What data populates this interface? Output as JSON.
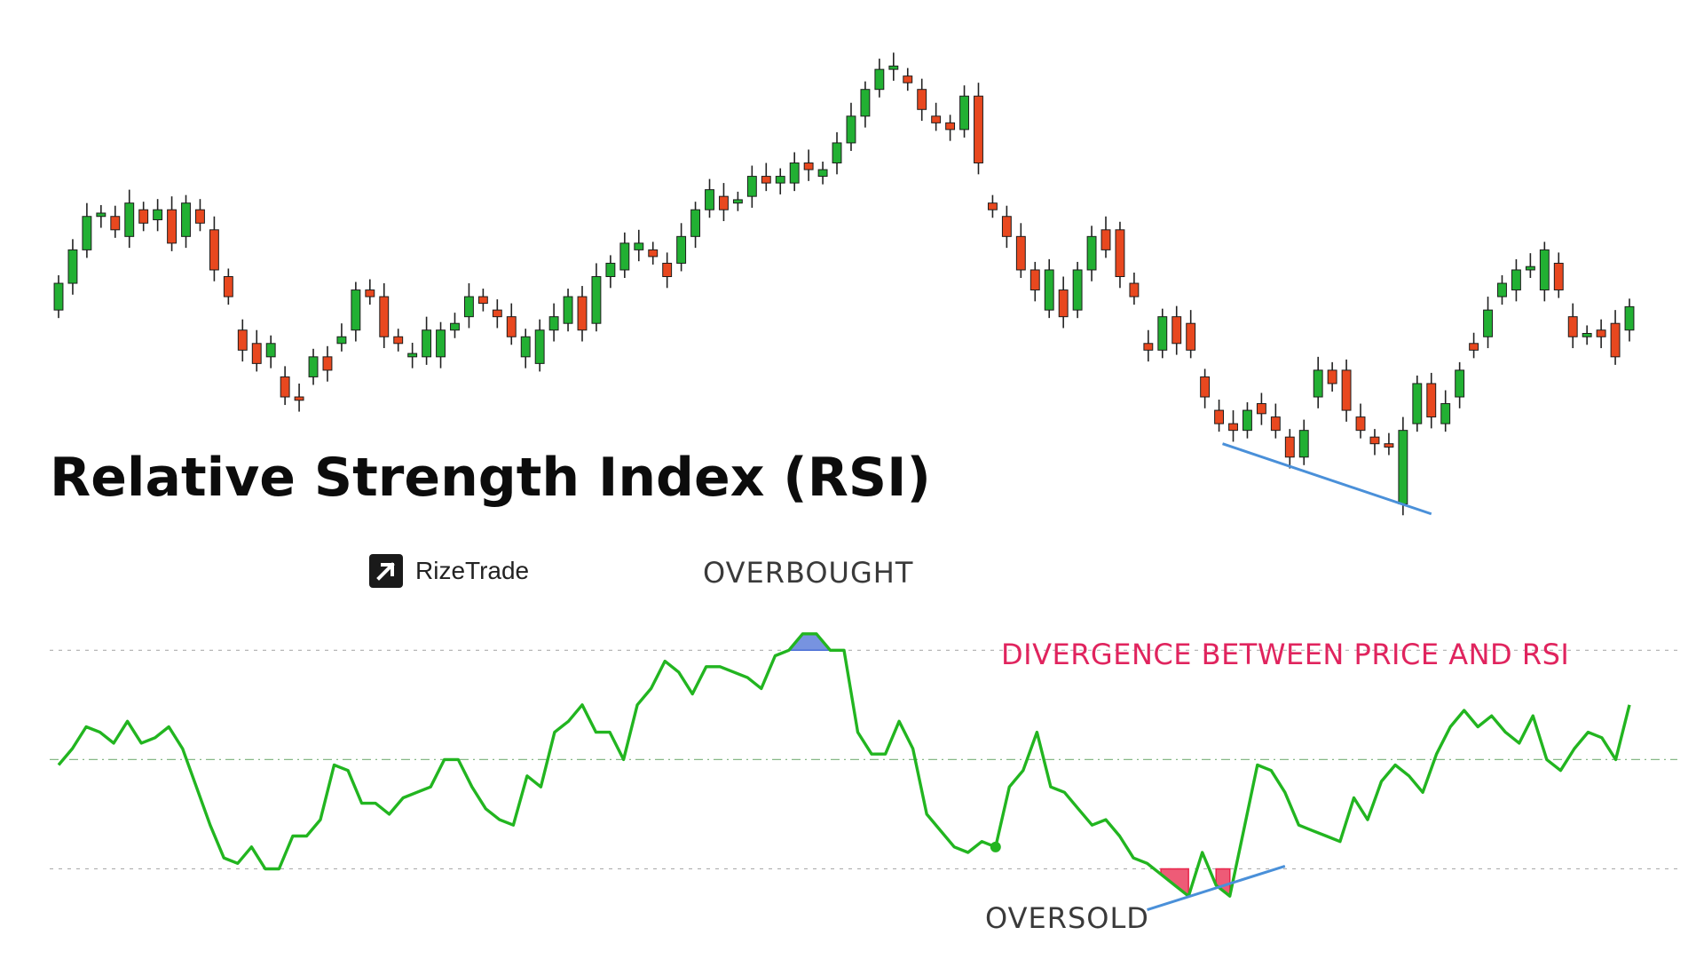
{
  "title": "Relative Strength Index (RSI)",
  "brand": {
    "name": "RizeTrade",
    "icon": "arrow-up-right-icon"
  },
  "colors": {
    "bull": "#22b033",
    "bear": "#e8481f",
    "rsi_line": "#22b520",
    "divergence_line": "#4a90d9",
    "overbought_fill": "#4a6fd6",
    "oversold_fill": "#e8244a",
    "divergence_text": "#e0245e"
  },
  "labels": {
    "overbought": "OVERBOUGHT",
    "oversold": "OVERSOLD",
    "divergence": "DIVERGENCE BETWEEN PRICE AND RSI"
  },
  "chart_data": [
    {
      "type": "candlestick",
      "title": "",
      "xlabel": "",
      "ylabel": "",
      "axes": "hidden",
      "grid": false,
      "ylim": [
        0,
        100
      ],
      "candles": [
        {
          "o": 18,
          "c": 22
        },
        {
          "o": 22,
          "c": 27
        },
        {
          "o": 27,
          "c": 32
        },
        {
          "o": 32,
          "c": 32.5
        },
        {
          "o": 32,
          "c": 30
        },
        {
          "o": 29,
          "c": 34
        },
        {
          "o": 33,
          "c": 31
        },
        {
          "o": 31.5,
          "c": 33
        },
        {
          "o": 33,
          "c": 28
        },
        {
          "o": 29,
          "c": 34
        },
        {
          "o": 33,
          "c": 31
        },
        {
          "o": 30,
          "c": 24
        },
        {
          "o": 23,
          "c": 20
        },
        {
          "o": 15,
          "c": 12
        },
        {
          "o": 13,
          "c": 10
        },
        {
          "o": 11,
          "c": 13
        },
        {
          "o": 8,
          "c": 5
        },
        {
          "o": 5,
          "c": 4.5
        },
        {
          "o": 8,
          "c": 11
        },
        {
          "o": 11,
          "c": 9
        },
        {
          "o": 13,
          "c": 14
        },
        {
          "o": 15,
          "c": 21
        },
        {
          "o": 21,
          "c": 20
        },
        {
          "o": 20,
          "c": 14
        },
        {
          "o": 14,
          "c": 13
        },
        {
          "o": 11,
          "c": 11.5
        },
        {
          "o": 11,
          "c": 15
        },
        {
          "o": 11,
          "c": 15
        },
        {
          "o": 15,
          "c": 16
        },
        {
          "o": 17,
          "c": 20
        },
        {
          "o": 20,
          "c": 19
        },
        {
          "o": 18,
          "c": 17
        },
        {
          "o": 17,
          "c": 14
        },
        {
          "o": 11,
          "c": 14
        },
        {
          "o": 10,
          "c": 15
        },
        {
          "o": 15,
          "c": 17
        },
        {
          "o": 16,
          "c": 20
        },
        {
          "o": 20,
          "c": 15
        },
        {
          "o": 16,
          "c": 23
        },
        {
          "o": 23,
          "c": 25
        },
        {
          "o": 24,
          "c": 28
        },
        {
          "o": 27,
          "c": 28
        },
        {
          "o": 27,
          "c": 26
        },
        {
          "o": 25,
          "c": 23
        },
        {
          "o": 25,
          "c": 29
        },
        {
          "o": 29,
          "c": 33
        },
        {
          "o": 33,
          "c": 36
        },
        {
          "o": 35,
          "c": 33
        },
        {
          "o": 34,
          "c": 34.5
        },
        {
          "o": 35,
          "c": 38
        },
        {
          "o": 38,
          "c": 37
        },
        {
          "o": 37,
          "c": 38
        },
        {
          "o": 37,
          "c": 40
        },
        {
          "o": 40,
          "c": 39
        },
        {
          "o": 38,
          "c": 39
        },
        {
          "o": 40,
          "c": 43
        },
        {
          "o": 43,
          "c": 47
        },
        {
          "o": 47,
          "c": 51
        },
        {
          "o": 51,
          "c": 54
        },
        {
          "o": 54,
          "c": 54.5
        },
        {
          "o": 53,
          "c": 52
        },
        {
          "o": 51,
          "c": 48
        },
        {
          "o": 47,
          "c": 46
        },
        {
          "o": 46,
          "c": 45
        },
        {
          "o": 45,
          "c": 50
        },
        {
          "o": 50,
          "c": 40
        },
        {
          "o": 34,
          "c": 33
        },
        {
          "o": 32,
          "c": 29
        },
        {
          "o": 29,
          "c": 24
        },
        {
          "o": 24,
          "c": 21
        },
        {
          "o": 18,
          "c": 24
        },
        {
          "o": 21,
          "c": 17
        },
        {
          "o": 18,
          "c": 24
        },
        {
          "o": 24,
          "c": 29
        },
        {
          "o": 30,
          "c": 27
        },
        {
          "o": 30,
          "c": 23
        },
        {
          "o": 22,
          "c": 20
        },
        {
          "o": 13,
          "c": 12
        },
        {
          "o": 12,
          "c": 17
        },
        {
          "o": 17,
          "c": 13
        },
        {
          "o": 16,
          "c": 12
        },
        {
          "o": 8,
          "c": 5
        },
        {
          "o": 3,
          "c": 1
        },
        {
          "o": 1,
          "c": 0
        },
        {
          "o": 0,
          "c": 3
        },
        {
          "o": 4,
          "c": 2.5
        },
        {
          "o": 2,
          "c": 0
        },
        {
          "o": -1,
          "c": -4
        },
        {
          "o": -4,
          "c": 0
        },
        {
          "o": 5,
          "c": 9
        },
        {
          "o": 9,
          "c": 7
        },
        {
          "o": 9,
          "c": 3
        },
        {
          "o": 2,
          "c": 0
        },
        {
          "o": -1,
          "c": -2
        },
        {
          "o": -2,
          "c": -2.5
        },
        {
          "o": -11,
          "c": 0
        },
        {
          "o": 1,
          "c": 7
        },
        {
          "o": 7,
          "c": 2
        },
        {
          "o": 1,
          "c": 4
        },
        {
          "o": 5,
          "c": 9
        },
        {
          "o": 13,
          "c": 12
        },
        {
          "o": 14,
          "c": 18
        },
        {
          "o": 20,
          "c": 22
        },
        {
          "o": 21,
          "c": 24
        },
        {
          "o": 24,
          "c": 24.5
        },
        {
          "o": 21,
          "c": 27
        },
        {
          "o": 25,
          "c": 21
        },
        {
          "o": 17,
          "c": 14
        },
        {
          "o": 14,
          "c": 14.5
        },
        {
          "o": 15,
          "c": 14
        },
        {
          "o": 16,
          "c": 11
        },
        {
          "o": 15,
          "c": 18.5
        }
      ]
    },
    {
      "type": "line",
      "title": "",
      "series_label": "",
      "xlabel": "",
      "ylabel": "",
      "axes": "hidden",
      "grid": false,
      "ylim": [
        20,
        85
      ],
      "reference_lines": [
        30,
        50,
        70
      ],
      "overbought_level": 70,
      "oversold_level": 30,
      "values": [
        49,
        52,
        56,
        55,
        53,
        57,
        53,
        54,
        56,
        52,
        45,
        38,
        32,
        31,
        34,
        30,
        30,
        36,
        36,
        39,
        49,
        48,
        42,
        42,
        40,
        43,
        44,
        45,
        50,
        50,
        45,
        41,
        39,
        38,
        47,
        45,
        55,
        57,
        60,
        55,
        55,
        50,
        60,
        63,
        68,
        66,
        62,
        67,
        67,
        66,
        65,
        63,
        69,
        70,
        73,
        73,
        70,
        70,
        55,
        51,
        51,
        57,
        52,
        40,
        37,
        34,
        33,
        35,
        34,
        45,
        48,
        55,
        45,
        44,
        41,
        38,
        39,
        36,
        32,
        31,
        29,
        27,
        25,
        33,
        27,
        25,
        37,
        49,
        48,
        44,
        38,
        37,
        36,
        35,
        43,
        39,
        46,
        49,
        47,
        44,
        51,
        56,
        59,
        56,
        58,
        55,
        53,
        58,
        50,
        48,
        52,
        55,
        54,
        50,
        60
      ]
    }
  ]
}
